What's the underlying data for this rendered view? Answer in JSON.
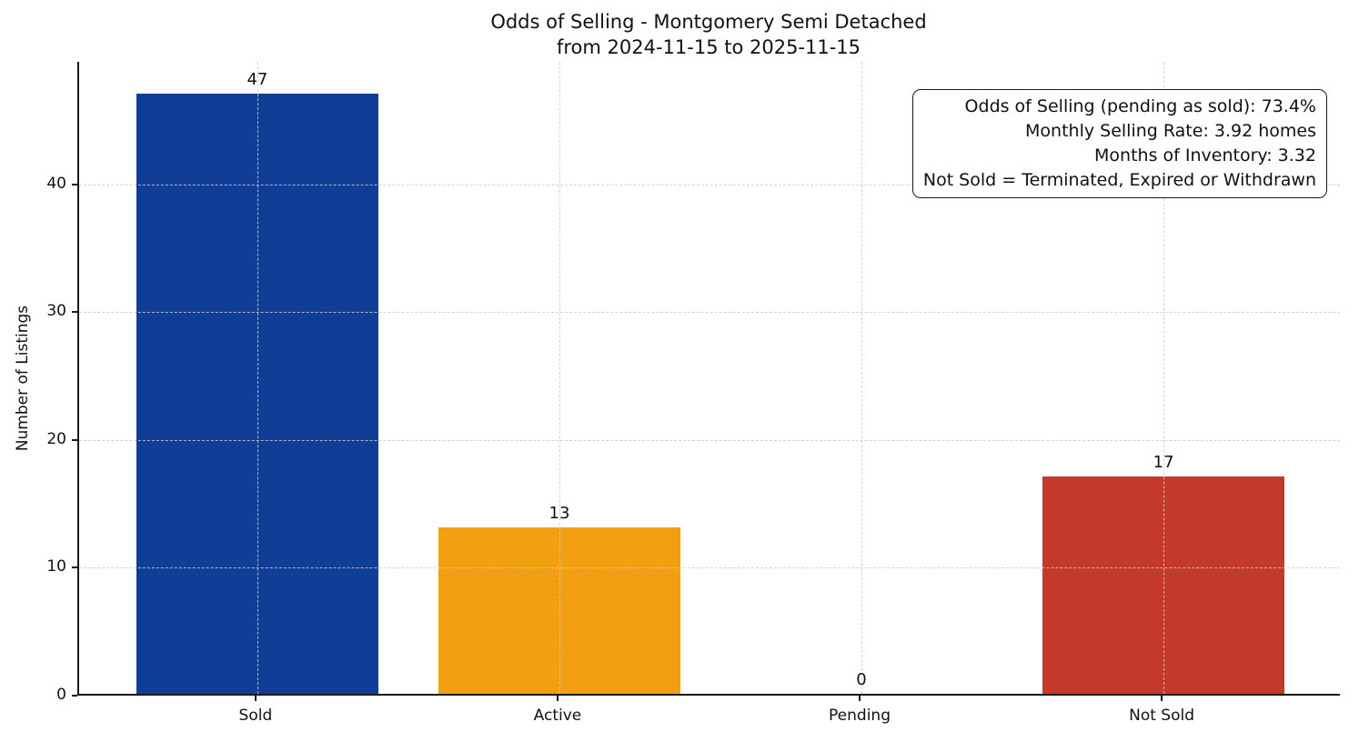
{
  "chart_data": {
    "type": "bar",
    "title": "Odds of Selling - Montgomery Semi Detached",
    "subtitle": "from 2024-11-15 to 2025-11-15",
    "categories": [
      "Sold",
      "Active",
      "Pending",
      "Not Sold"
    ],
    "values": [
      47,
      13,
      0,
      17
    ],
    "bar_value_labels": [
      "47",
      "13",
      "0",
      "17"
    ],
    "bar_colors": [
      "#103e96",
      "#f2a012",
      "#999999",
      "#c33a2a"
    ],
    "xlabel": "",
    "ylabel": "Number of Listings",
    "ylim": [
      0,
      49.6
    ],
    "yticks": [
      0,
      10,
      20,
      30,
      40
    ],
    "grid": "dashed both axes, drawn over bars",
    "legend_position": "none",
    "spines": "left and bottom only",
    "background_color": "#ffffff",
    "text_color": "#111111",
    "stats": {
      "odds_of_selling_pct": 73.4,
      "monthly_selling_rate_homes": 3.92,
      "months_of_inventory": 3.32
    },
    "annotation": {
      "lines": [
        "Odds of Selling (pending as sold): 73.4%",
        "Monthly Selling Rate: 3.92 homes",
        "Months of Inventory: 3.32",
        "Not Sold = Terminated, Expired or Withdrawn"
      ]
    }
  }
}
